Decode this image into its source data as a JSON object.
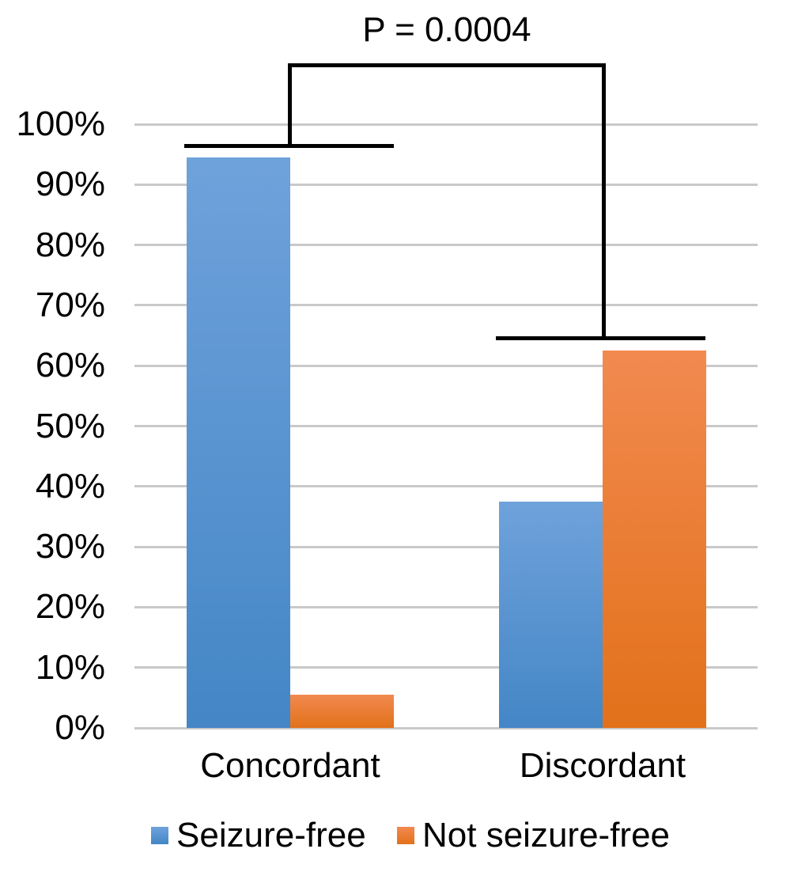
{
  "chart_data": {
    "type": "bar",
    "title": "",
    "annotation": "P = 0.0004",
    "categories": [
      "Concordant",
      "Discordant"
    ],
    "series": [
      {
        "name": "Seizure-free",
        "values": [
          94.5,
          37.5
        ],
        "color_top": "#6FA2DB",
        "color_bottom": "#4486C6"
      },
      {
        "name": "Not seizure-free",
        "values": [
          5.5,
          62.5
        ],
        "color_top": "#F28A50",
        "color_bottom": "#E2711A"
      }
    ],
    "y_ticks": [
      "100%",
      "90%",
      "80%",
      "70%",
      "60%",
      "50%",
      "40%",
      "30%",
      "20%",
      "10%",
      "0%"
    ],
    "ylim": [
      0,
      100
    ],
    "grid": "horizontal gridlines on",
    "legend_position": "bottom",
    "significance_bracket": "connects Concordant group and Discordant group"
  },
  "colors": {
    "gridline": "#C9C9C9",
    "bracket": "#000000",
    "text": "#000000",
    "background": "#FFFFFF"
  }
}
